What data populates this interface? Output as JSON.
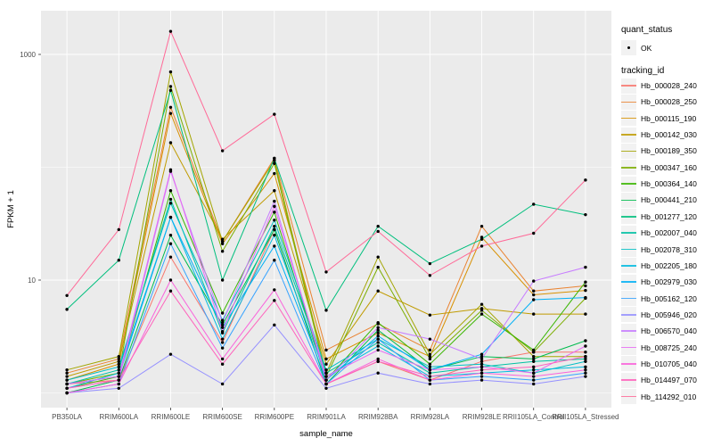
{
  "chart_data": {
    "type": "line",
    "title": "",
    "xlabel": "sample_name",
    "ylabel": "FPKM + 1",
    "y_scale": "log10",
    "y_ticks": [
      1000,
      10
    ],
    "y_tick_labels": [
      "1000",
      "10"
    ],
    "y_minor": [
      100,
      1
    ],
    "ylim": [
      0.74,
      2400
    ],
    "grid": true,
    "panel_bg": "#EBEBEB",
    "grid_color": "#FFFFFF",
    "point_color": "#000000",
    "categories": [
      "PB350LA",
      "RRIM600LA",
      "RRIM600LE",
      "RRIM600SE",
      "RRIM600PE",
      "RRIM901LA",
      "RRIM928BA",
      "RRIM928LA",
      "RRIM928LE",
      "RRII105LA_Control",
      "RRII105LA_Stressed"
    ],
    "series": [
      {
        "name": "Hb_000028_240",
        "color": "#F8766D",
        "values": [
          1.2,
          1.3,
          16,
          2.8,
          28,
          1.2,
          1.9,
          1.3,
          1.9,
          2.3,
          2.3
        ]
      },
      {
        "name": "Hb_000028_250",
        "color": "#EA8331",
        "values": [
          1.5,
          2.0,
          340,
          22,
          120,
          2.4,
          4.1,
          2.4,
          30,
          8.0,
          8.9
        ]
      },
      {
        "name": "Hb_000115_190",
        "color": "#D89000",
        "values": [
          1.3,
          1.8,
          300,
          21,
          88,
          2.0,
          3.4,
          2.1,
          24,
          7.4,
          8.1
        ]
      },
      {
        "name": "Hb_000142_030",
        "color": "#C09B00",
        "values": [
          1.4,
          1.9,
          165,
          23,
          62,
          1.8,
          8.0,
          4.9,
          5.6,
          5.0,
          5.0
        ]
      },
      {
        "name": "Hb_000189_350",
        "color": "#A3A500",
        "values": [
          1.6,
          2.1,
          700,
          22,
          115,
          1.5,
          16,
          2.2,
          6.1,
          2.1,
          2.1
        ]
      },
      {
        "name": "Hb_000347_160",
        "color": "#7CAE00",
        "values": [
          1.2,
          1.5,
          520,
          18,
          108,
          1.4,
          13,
          2.0,
          5.4,
          2.3,
          6.9
        ]
      },
      {
        "name": "Hb_000364_140",
        "color": "#39B600",
        "values": [
          1.1,
          1.4,
          62,
          5.1,
          40,
          1.3,
          4.2,
          1.8,
          5.0,
          2.4,
          9.6
        ]
      },
      {
        "name": "Hb_000441_210",
        "color": "#00BB4E",
        "values": [
          1.0,
          1.3,
          25,
          4.0,
          28,
          1.2,
          3.6,
          1.6,
          2.1,
          2.0,
          2.9
        ]
      },
      {
        "name": "Hb_001277_120",
        "color": "#00BF7D",
        "values": [
          5.5,
          15,
          480,
          10,
          120,
          5.4,
          30,
          14,
          23,
          47,
          38
        ]
      },
      {
        "name": "Hb_002007_040",
        "color": "#00C1A3",
        "values": [
          1.2,
          1.6,
          52,
          3.4,
          30,
          1.5,
          2.8,
          1.5,
          1.7,
          1.9,
          2.0
        ]
      },
      {
        "name": "Hb_002078_310",
        "color": "#00BFC4",
        "values": [
          1.3,
          1.7,
          48,
          4.4,
          34,
          1.6,
          3.0,
          1.7,
          1.8,
          1.5,
          1.9
        ]
      },
      {
        "name": "Hb_002205_180",
        "color": "#00BAE0",
        "values": [
          1.1,
          1.5,
          36,
          3.0,
          25,
          1.4,
          2.6,
          1.4,
          1.5,
          1.6,
          1.7
        ]
      },
      {
        "name": "Hb_002979_030",
        "color": "#00B0F6",
        "values": [
          1.2,
          1.4,
          36,
          3.8,
          20,
          1.3,
          3.2,
          1.6,
          2.2,
          6.7,
          7.0
        ]
      },
      {
        "name": "Hb_005162_120",
        "color": "#35A2FF",
        "values": [
          1.0,
          1.2,
          21,
          2.5,
          15,
          1.2,
          3.0,
          1.3,
          1.4,
          1.3,
          1.5
        ]
      },
      {
        "name": "Hb_005946_020",
        "color": "#9590FF",
        "values": [
          1.0,
          1.1,
          2.2,
          1.2,
          4.0,
          1.1,
          1.5,
          1.2,
          1.3,
          1.2,
          1.4
        ]
      },
      {
        "name": "Hb_006570_040",
        "color": "#C77CFF",
        "values": [
          1.1,
          1.3,
          92,
          4.2,
          50,
          1.3,
          3.8,
          3.0,
          2.0,
          9.8,
          13
        ]
      },
      {
        "name": "Hb_008725_240",
        "color": "#E76BF3",
        "values": [
          1.2,
          1.4,
          95,
          3.5,
          45,
          1.4,
          2.4,
          1.6,
          1.7,
          1.5,
          2.6
        ]
      },
      {
        "name": "Hb_010705_040",
        "color": "#FA62DB",
        "values": [
          1.0,
          1.2,
          10,
          2.0,
          8.2,
          1.2,
          2.0,
          1.3,
          1.5,
          1.4,
          1.6
        ]
      },
      {
        "name": "Hb_014497_070",
        "color": "#FF62BC",
        "values": [
          1.1,
          1.3,
          8.0,
          1.8,
          6.6,
          1.2,
          1.9,
          1.4,
          1.6,
          1.7,
          2.1
        ]
      },
      {
        "name": "Hb_114292_010",
        "color": "#FF6A98",
        "values": [
          7.3,
          28,
          1600,
          140,
          295,
          11.8,
          27,
          11,
          20,
          26,
          77
        ]
      }
    ],
    "legend_position": "right"
  },
  "legend": {
    "quant_status_title": "quant_status",
    "quant_status_items": [
      {
        "label": "OK"
      }
    ],
    "tracking_id_title": "tracking_id"
  },
  "colors": {
    "panel_bg": "#EBEBEB",
    "grid": "#FFFFFF",
    "tick": "#333333",
    "tick_label": "#4D4D4D",
    "legend_key_bg": "#F2F2F2"
  }
}
